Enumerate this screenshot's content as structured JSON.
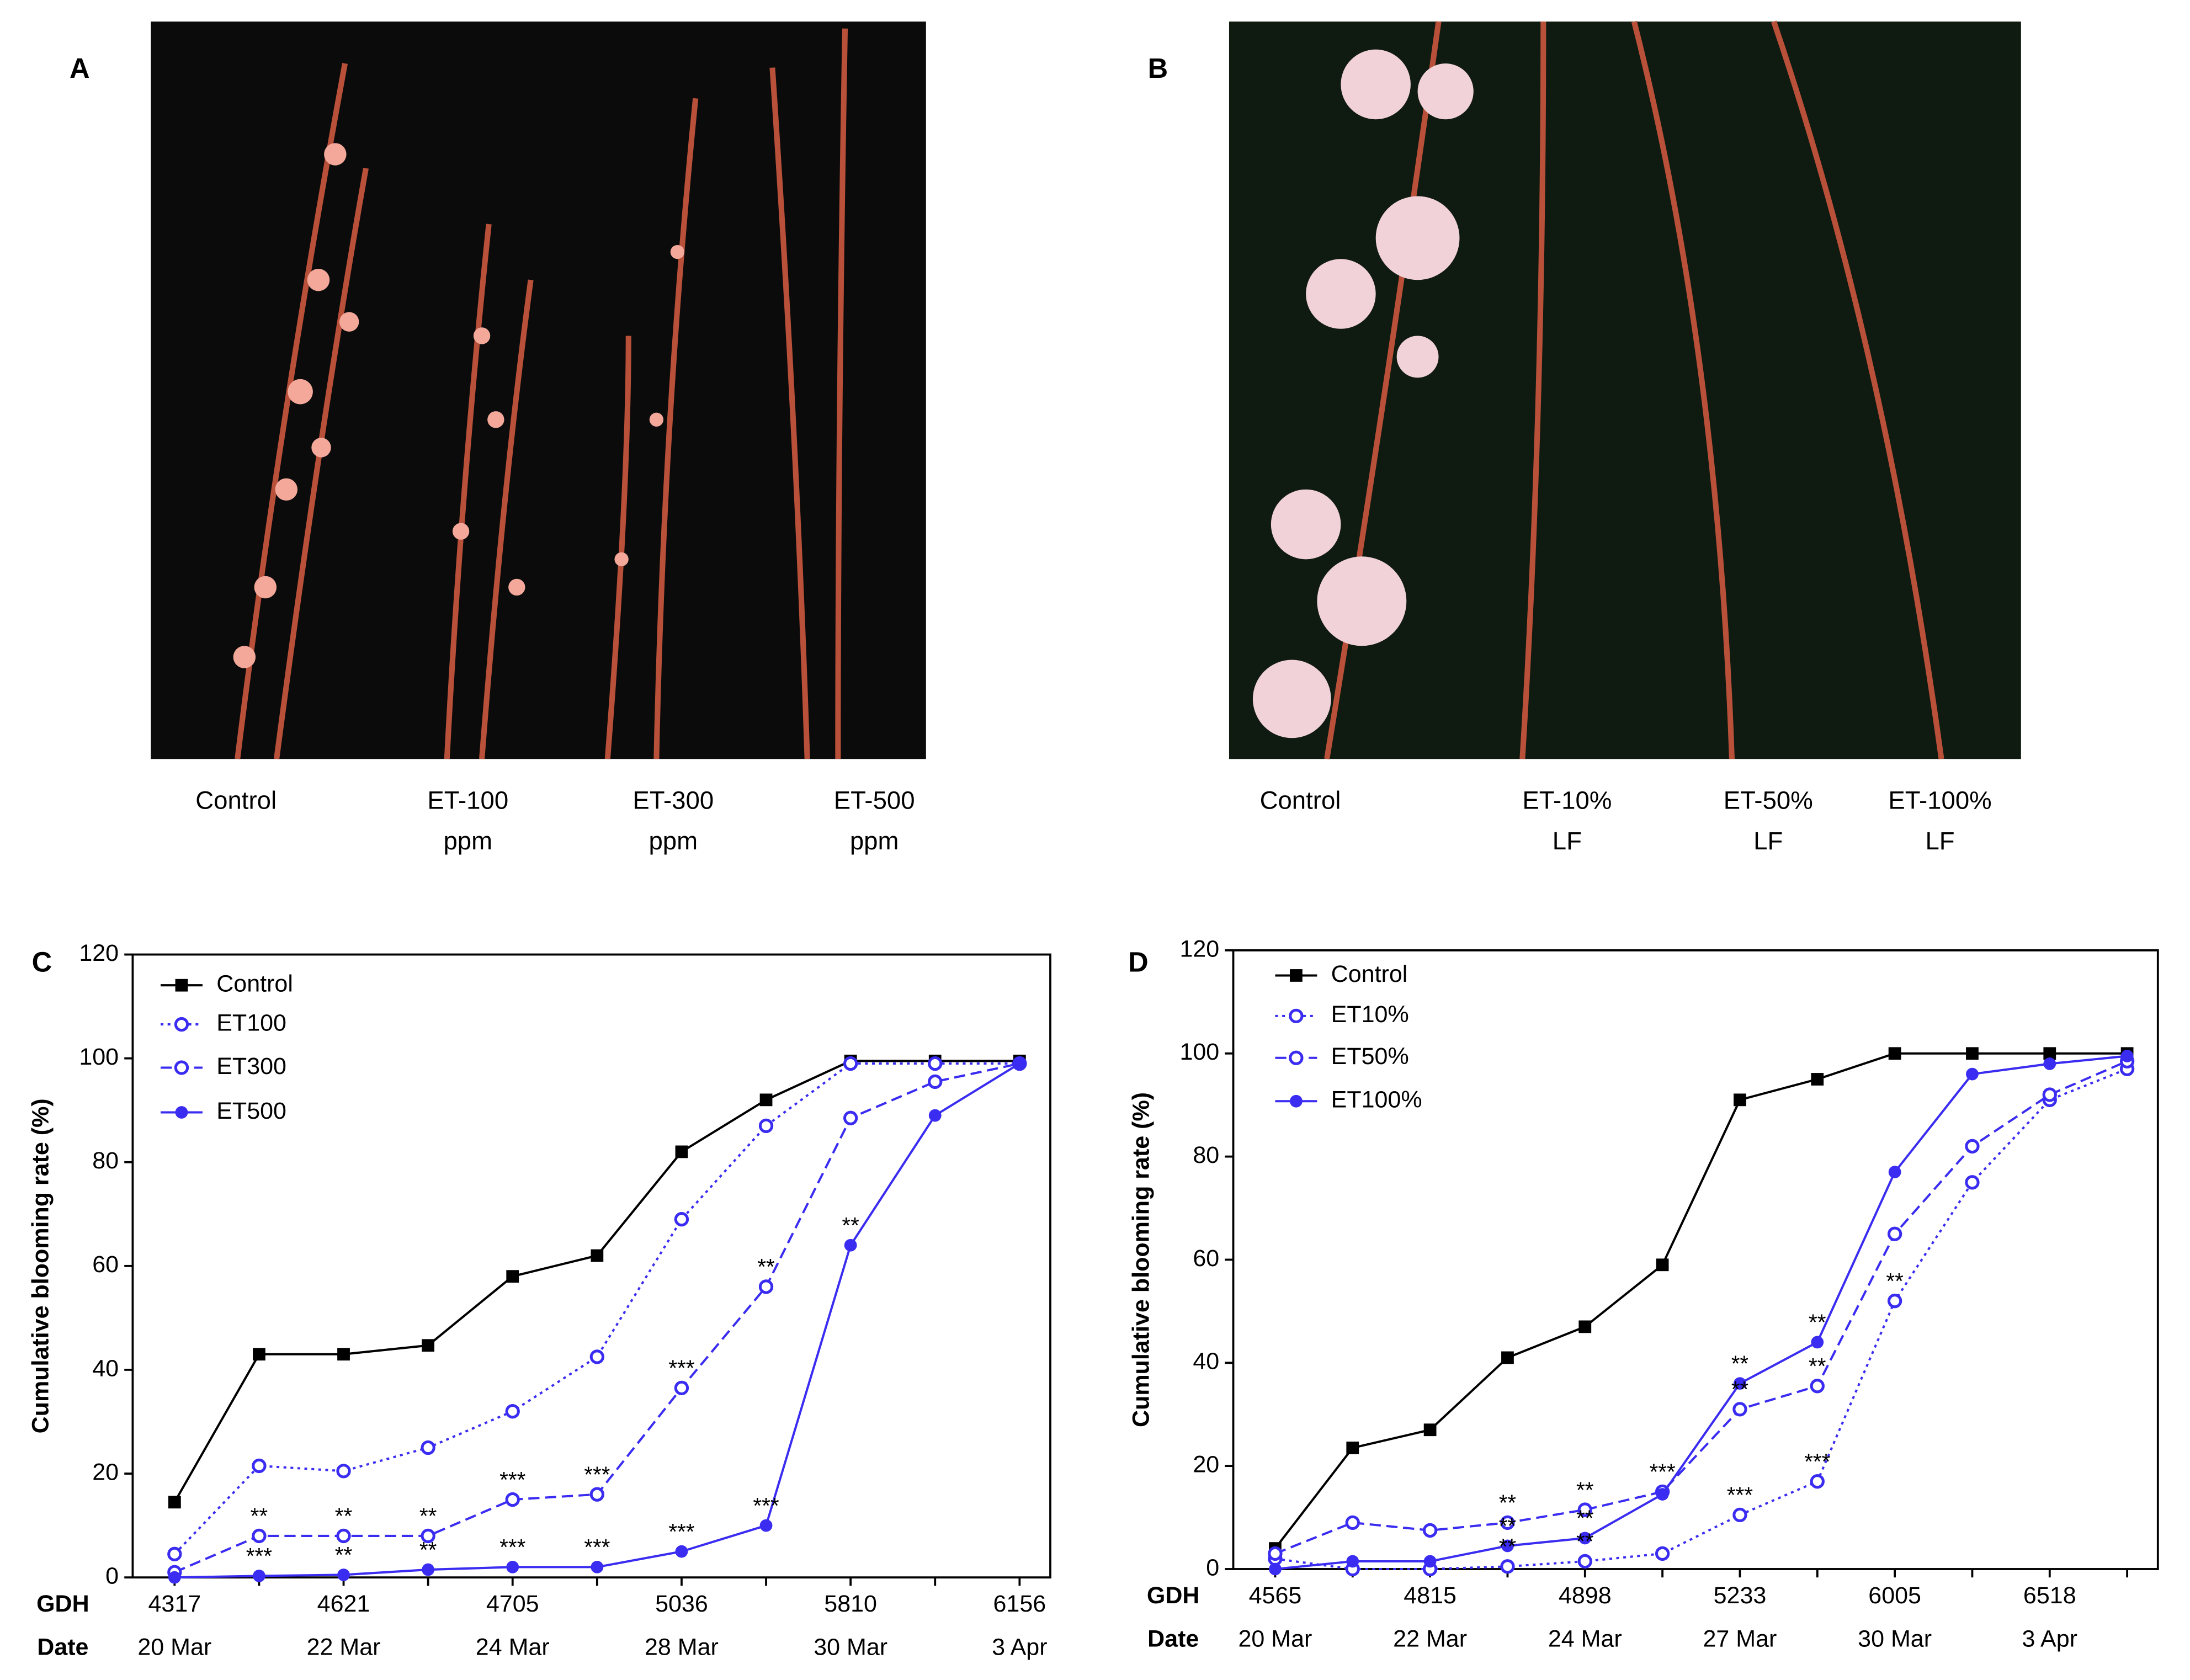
{
  "photo_panels": [
    {
      "label": "A",
      "captions": [
        [
          "Control"
        ],
        [
          "ET-100",
          "ppm"
        ],
        [
          "ET-300",
          "ppm"
        ],
        [
          "ET-500",
          "ppm"
        ]
      ]
    },
    {
      "label": "B",
      "captions": [
        [
          "Control"
        ],
        [
          "ET-10%",
          "LF"
        ],
        [
          "ET-50%",
          "LF"
        ],
        [
          "ET-100%",
          "LF"
        ]
      ]
    }
  ],
  "chart_data": [
    {
      "type": "line",
      "panel": "C",
      "ylabel": "Cumulative blooming rate (%)",
      "row_labels": [
        "GDH",
        "Date"
      ],
      "categories": [
        "4317",
        null,
        "4621",
        null,
        "4705",
        null,
        "5036",
        null,
        "5810",
        null,
        "6156"
      ],
      "dates": [
        "20 Mar",
        null,
        "22 Mar",
        null,
        "24 Mar",
        null,
        "28 Mar",
        null,
        "30 Mar",
        null,
        "3 Apr"
      ],
      "ylim": [
        0,
        120
      ],
      "yticks": [
        0,
        20,
        40,
        60,
        80,
        100,
        120
      ],
      "series": [
        {
          "name": "Control",
          "color": "#000000",
          "dash": "solid",
          "marker": "square",
          "values": [
            14.5,
            43,
            43,
            44.7,
            58,
            62,
            82,
            92,
            99.5,
            99.5,
            99.5
          ]
        },
        {
          "name": "ET100",
          "color": "#3a2cf0",
          "dash": "dotted",
          "marker": "open-circle",
          "values": [
            4.5,
            21.5,
            20.5,
            25,
            32,
            42.5,
            69,
            87,
            99,
            99,
            99
          ]
        },
        {
          "name": "ET300",
          "color": "#3a2cf0",
          "dash": "dashed",
          "marker": "open-circle",
          "values": [
            1,
            8,
            8,
            8,
            15,
            16,
            36.5,
            56,
            88.5,
            95.5,
            99
          ]
        },
        {
          "name": "ET500",
          "color": "#3a2cf0",
          "dash": "solid",
          "marker": "circle",
          "values": [
            0,
            0.3,
            0.5,
            1.5,
            2,
            2,
            5,
            10,
            64,
            89,
            99
          ]
        }
      ],
      "annotations": [
        {
          "text": "**",
          "series": 2,
          "point": 1
        },
        {
          "text": "**",
          "series": 2,
          "point": 2
        },
        {
          "text": "**",
          "series": 2,
          "point": 3
        },
        {
          "text": "***",
          "series": 2,
          "point": 4
        },
        {
          "text": "***",
          "series": 2,
          "point": 5
        },
        {
          "text": "***",
          "series": 2,
          "point": 6
        },
        {
          "text": "**",
          "series": 2,
          "point": 7
        },
        {
          "text": "***",
          "series": 3,
          "point": 1
        },
        {
          "text": "**",
          "series": 3,
          "point": 2
        },
        {
          "text": "**",
          "series": 3,
          "point": 3
        },
        {
          "text": "***",
          "series": 3,
          "point": 4
        },
        {
          "text": "***",
          "series": 3,
          "point": 5
        },
        {
          "text": "***",
          "series": 3,
          "point": 6
        },
        {
          "text": "***",
          "series": 3,
          "point": 7
        },
        {
          "text": "**",
          "series": 3,
          "point": 8
        }
      ]
    },
    {
      "type": "line",
      "panel": "D",
      "ylabel": "Cumulative blooming rate (%)",
      "row_labels": [
        "GDH",
        "Date"
      ],
      "categories": [
        "4565",
        null,
        "4815",
        null,
        "4898",
        null,
        "5233",
        null,
        "6005",
        null,
        "6518",
        null
      ],
      "dates": [
        "20 Mar",
        null,
        "22 Mar",
        null,
        "24 Mar",
        null,
        "27 Mar",
        null,
        "30 Mar",
        null,
        "3 Apr",
        null
      ],
      "ylim": [
        0,
        120
      ],
      "yticks": [
        0,
        20,
        40,
        60,
        80,
        100,
        120
      ],
      "series": [
        {
          "name": "Control",
          "color": "#000000",
          "dash": "solid",
          "marker": "square",
          "values": [
            4,
            23.5,
            27,
            41,
            47,
            59,
            91,
            95,
            100,
            100,
            100,
            100
          ]
        },
        {
          "name": "ET10%",
          "color": "#3a2cf0",
          "dash": "dotted",
          "marker": "open-circle",
          "values": [
            2,
            0,
            0,
            0.5,
            1.5,
            3,
            10.5,
            17,
            52,
            75,
            91,
            97
          ]
        },
        {
          "name": "ET50%",
          "color": "#3a2cf0",
          "dash": "dashed",
          "marker": "open-circle",
          "values": [
            3,
            9,
            7.5,
            9,
            11.5,
            15,
            31,
            35.5,
            65,
            82,
            92,
            98.5
          ]
        },
        {
          "name": "ET100%",
          "color": "#3a2cf0",
          "dash": "solid",
          "marker": "circle",
          "values": [
            0,
            1.5,
            1.5,
            4.5,
            6,
            14.5,
            36,
            44,
            77,
            96,
            98,
            99.5
          ]
        }
      ],
      "annotations": [
        {
          "text": "**",
          "series": 2,
          "point": 3
        },
        {
          "text": "**",
          "series": 3,
          "point": 3
        },
        {
          "text": "**",
          "series": 1,
          "point": 3
        },
        {
          "text": "**",
          "series": 2,
          "point": 4
        },
        {
          "text": "**",
          "series": 3,
          "point": 4
        },
        {
          "text": "**",
          "series": 1,
          "point": 4
        },
        {
          "text": "***",
          "series": 2,
          "point": 5
        },
        {
          "text": "**",
          "series": 3,
          "point": 6
        },
        {
          "text": "**",
          "series": 2,
          "point": 6
        },
        {
          "text": "***",
          "series": 1,
          "point": 6
        },
        {
          "text": "**",
          "series": 3,
          "point": 7
        },
        {
          "text": "**",
          "series": 2,
          "point": 7
        },
        {
          "text": "***",
          "series": 1,
          "point": 7
        },
        {
          "text": "**",
          "series": 1,
          "point": 8
        }
      ]
    }
  ]
}
